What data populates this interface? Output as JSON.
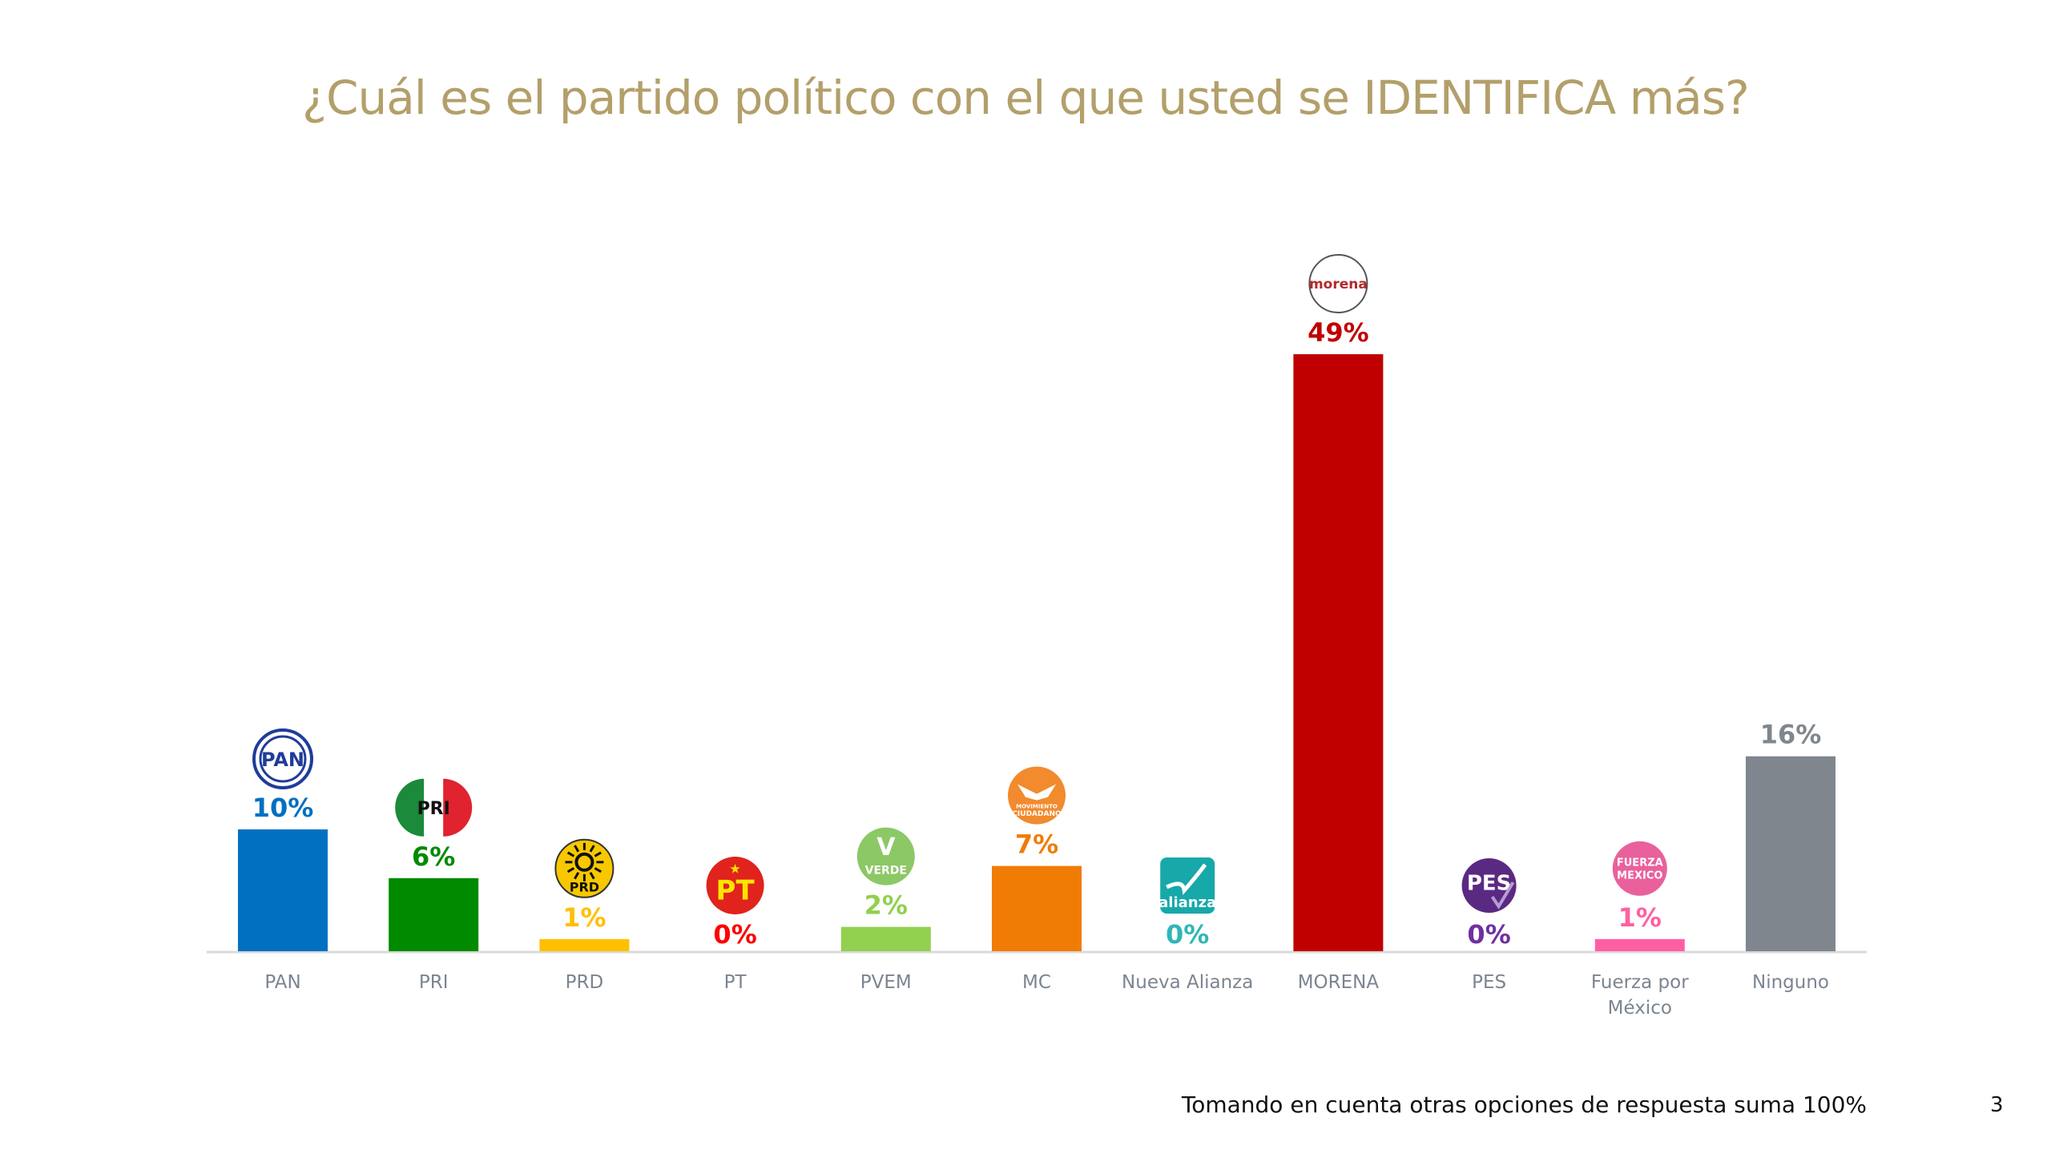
{
  "slide": {
    "title": "¿Cuál es el partido político con el que usted se IDENTIFICA más?",
    "footnote": "Tomando en cuenta otras opciones de respuesta suma 100%",
    "page_number": "3"
  },
  "chart_data": {
    "type": "bar",
    "title": "¿Cuál es el partido político con el que usted se IDENTIFICA más?",
    "xlabel": "",
    "ylabel": "",
    "ylim": [
      0,
      49
    ],
    "grid": false,
    "legend": "none",
    "categories": [
      "PAN",
      "PRI",
      "PRD",
      "PT",
      "PVEM",
      "MC",
      "Nueva Alianza",
      "MORENA",
      "PES",
      "Fuerza por México",
      "Ninguno"
    ],
    "values": [
      10,
      6,
      1,
      0,
      2,
      7,
      0,
      49,
      0,
      1,
      16
    ],
    "data_labels": [
      "10%",
      "6%",
      "1%",
      "0%",
      "2%",
      "7%",
      "0%",
      "49%",
      "0%",
      "1%",
      "16%"
    ],
    "colors": [
      "#0070c0",
      "#008a00",
      "#ffc000",
      "#ff0000",
      "#92d050",
      "#f07c06",
      "#2fb7b5",
      "#c00000",
      "#7030a0",
      "#ff5fa2",
      "#7f868d"
    ],
    "logos": [
      {
        "icon": "pan-logo-icon",
        "text": "PAN"
      },
      {
        "icon": "pri-logo-icon",
        "text": "PRI"
      },
      {
        "icon": "prd-logo-icon",
        "text": "PRD"
      },
      {
        "icon": "pt-logo-icon",
        "text": "PT"
      },
      {
        "icon": "verde-logo-icon",
        "text": "VERDE"
      },
      {
        "icon": "movimiento-ciudadano-logo-icon",
        "text": "MOVIMIENTO CIUDADANO"
      },
      {
        "icon": "nueva-alianza-logo-icon",
        "text": "alianza"
      },
      {
        "icon": "morena-logo-icon",
        "text": "morena"
      },
      {
        "icon": "pes-logo-icon",
        "text": "PES"
      },
      {
        "icon": "fuerza-mexico-logo-icon",
        "text": "FUERZA MÉXICO"
      },
      null
    ]
  }
}
